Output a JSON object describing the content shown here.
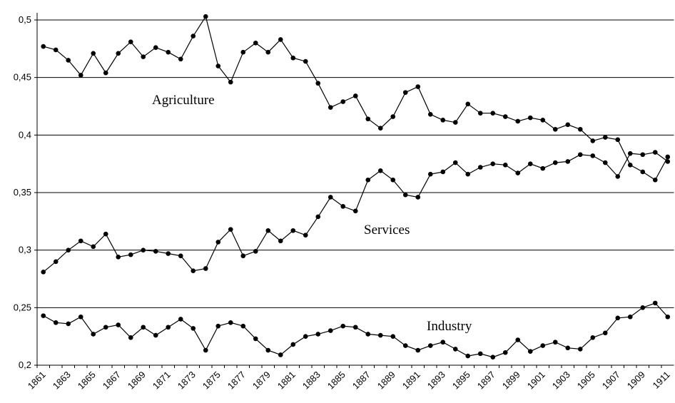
{
  "chart_data": {
    "type": "line",
    "categories": [
      "1861",
      null,
      "1863",
      null,
      "1865",
      null,
      "1867",
      null,
      "1869",
      null,
      "1871",
      null,
      "1873",
      null,
      "1875",
      null,
      "1877",
      null,
      "1879",
      null,
      "1881",
      null,
      "1883",
      null,
      "1885",
      null,
      "1887",
      null,
      "1889",
      null,
      "1891",
      null,
      "1893",
      null,
      "1895",
      null,
      "1897",
      null,
      "1899",
      null,
      "1901",
      null,
      "1903",
      null,
      "1905",
      null,
      "1907",
      null,
      "1909",
      null,
      "1911"
    ],
    "series": [
      {
        "name": "Agriculture",
        "color": "#000000",
        "values": [
          0.477,
          0.474,
          0.465,
          0.452,
          0.471,
          0.454,
          0.471,
          0.481,
          0.468,
          0.476,
          0.472,
          0.466,
          0.486,
          0.503,
          0.46,
          0.446,
          0.472,
          0.48,
          0.472,
          0.483,
          0.467,
          0.464,
          0.445,
          0.424,
          0.429,
          0.434,
          0.414,
          0.406,
          0.416,
          0.437,
          0.442,
          0.418,
          0.413,
          0.411,
          0.427,
          0.419,
          0.419,
          0.416,
          0.412,
          0.415,
          0.413,
          0.405,
          0.409,
          0.405,
          0.395,
          0.398,
          0.396,
          0.374,
          0.368,
          0.361,
          0.381
        ]
      },
      {
        "name": "Services",
        "color": "#000000",
        "values": [
          0.281,
          0.29,
          0.3,
          0.308,
          0.303,
          0.314,
          0.294,
          0.296,
          0.3,
          0.299,
          0.297,
          0.295,
          0.282,
          0.284,
          0.307,
          0.318,
          0.295,
          0.299,
          0.317,
          0.308,
          0.317,
          0.313,
          0.329,
          0.346,
          0.338,
          0.334,
          0.361,
          0.369,
          0.361,
          0.348,
          0.346,
          0.366,
          0.368,
          0.376,
          0.366,
          0.372,
          0.375,
          0.374,
          0.367,
          0.375,
          0.371,
          0.376,
          0.377,
          0.383,
          0.382,
          0.376,
          0.364,
          0.384,
          0.383,
          0.385,
          0.377
        ]
      },
      {
        "name": "Industry",
        "color": "#000000",
        "values": [
          0.243,
          0.237,
          0.236,
          0.242,
          0.227,
          0.233,
          0.235,
          0.224,
          0.233,
          0.226,
          0.233,
          0.24,
          0.232,
          0.213,
          0.234,
          0.237,
          0.234,
          0.223,
          0.213,
          0.209,
          0.218,
          0.225,
          0.227,
          0.23,
          0.234,
          0.233,
          0.227,
          0.226,
          0.225,
          0.217,
          0.213,
          0.217,
          0.22,
          0.214,
          0.208,
          0.21,
          0.207,
          0.211,
          0.222,
          0.212,
          0.217,
          0.22,
          0.215,
          0.214,
          0.224,
          0.228,
          0.241,
          0.242,
          0.25,
          0.254,
          0.242
        ]
      }
    ],
    "ylim": [
      0.2,
      0.5
    ],
    "yticks": [
      {
        "value": 0.2,
        "label": "0,2"
      },
      {
        "value": 0.25,
        "label": "0,25"
      },
      {
        "value": 0.3,
        "label": "0,3"
      },
      {
        "value": 0.35,
        "label": "0,35"
      },
      {
        "value": 0.4,
        "label": "0,4"
      },
      {
        "value": 0.45,
        "label": "0,45"
      },
      {
        "value": 0.5,
        "label": "0,5"
      }
    ],
    "grid": true
  }
}
